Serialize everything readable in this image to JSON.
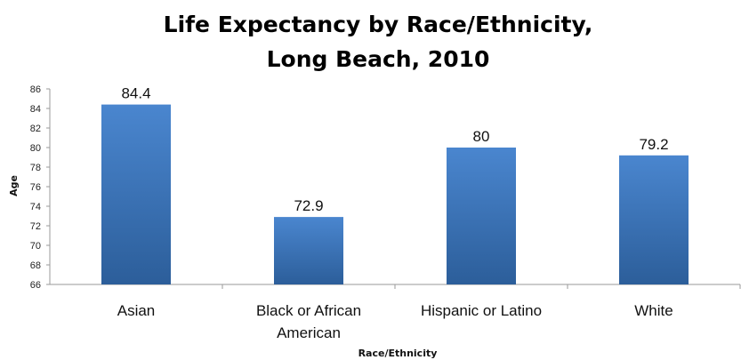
{
  "chart_data": {
    "type": "bar",
    "title": "Life Expectancy by Race/Ethnicity,",
    "subtitle": "Long Beach, 2010",
    "xlabel": "Race/Ethnicity",
    "ylabel": "Age",
    "categories": [
      [
        "Asian"
      ],
      [
        "Black or African",
        "American"
      ],
      [
        "Hispanic or Latino"
      ],
      [
        "White"
      ]
    ],
    "values": [
      84.4,
      72.9,
      80,
      79.2
    ],
    "value_labels": [
      "84.4",
      "72.9",
      "80",
      "79.2"
    ],
    "ylim": [
      66,
      86
    ],
    "yticks": [
      66,
      68,
      70,
      72,
      74,
      76,
      78,
      80,
      82,
      84,
      86
    ],
    "grid": false,
    "legend": "none",
    "colors": {
      "bar_top": "#4a86cf",
      "bar_bottom": "#2c5e9a",
      "axis": "#9a9a9a"
    }
  }
}
